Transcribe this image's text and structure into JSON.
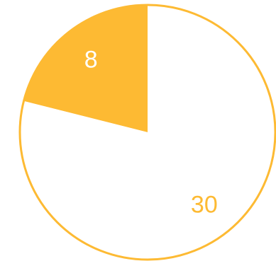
{
  "chart_data": {
    "type": "pie",
    "title": "",
    "slices": [
      {
        "label": "8",
        "value": 8,
        "color": "#FDBA33",
        "label_color": "#FFFFFF"
      },
      {
        "label": "30",
        "value": 30,
        "color": "#FFFFFF",
        "label_color": "#FDBA33"
      }
    ],
    "start_angle_deg": 0,
    "direction": "counterclockwise",
    "stroke_color": "#FDBA33",
    "legend": "none"
  }
}
